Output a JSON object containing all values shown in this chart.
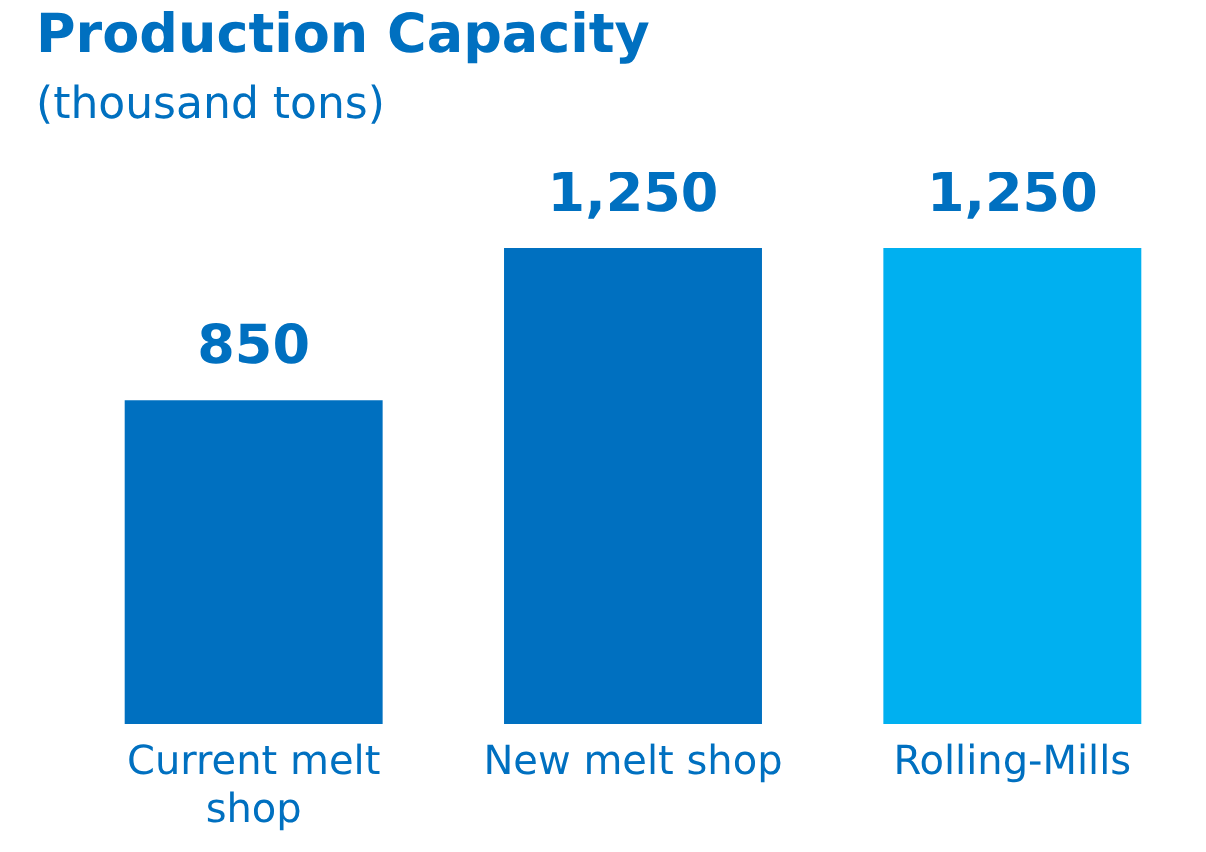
{
  "chart_data": {
    "type": "bar",
    "title": "Production Capacity",
    "subtitle": "(thousand tons)",
    "categories": [
      "Current melt shop",
      "New melt shop",
      "Rolling-Mills"
    ],
    "values": [
      850,
      1250,
      1250
    ],
    "colors": [
      "#0070c0",
      "#0070c0",
      "#00b0f0"
    ],
    "value_labels": [
      "850",
      "1,250",
      "1,250"
    ],
    "grid": false,
    "legend": false
  }
}
